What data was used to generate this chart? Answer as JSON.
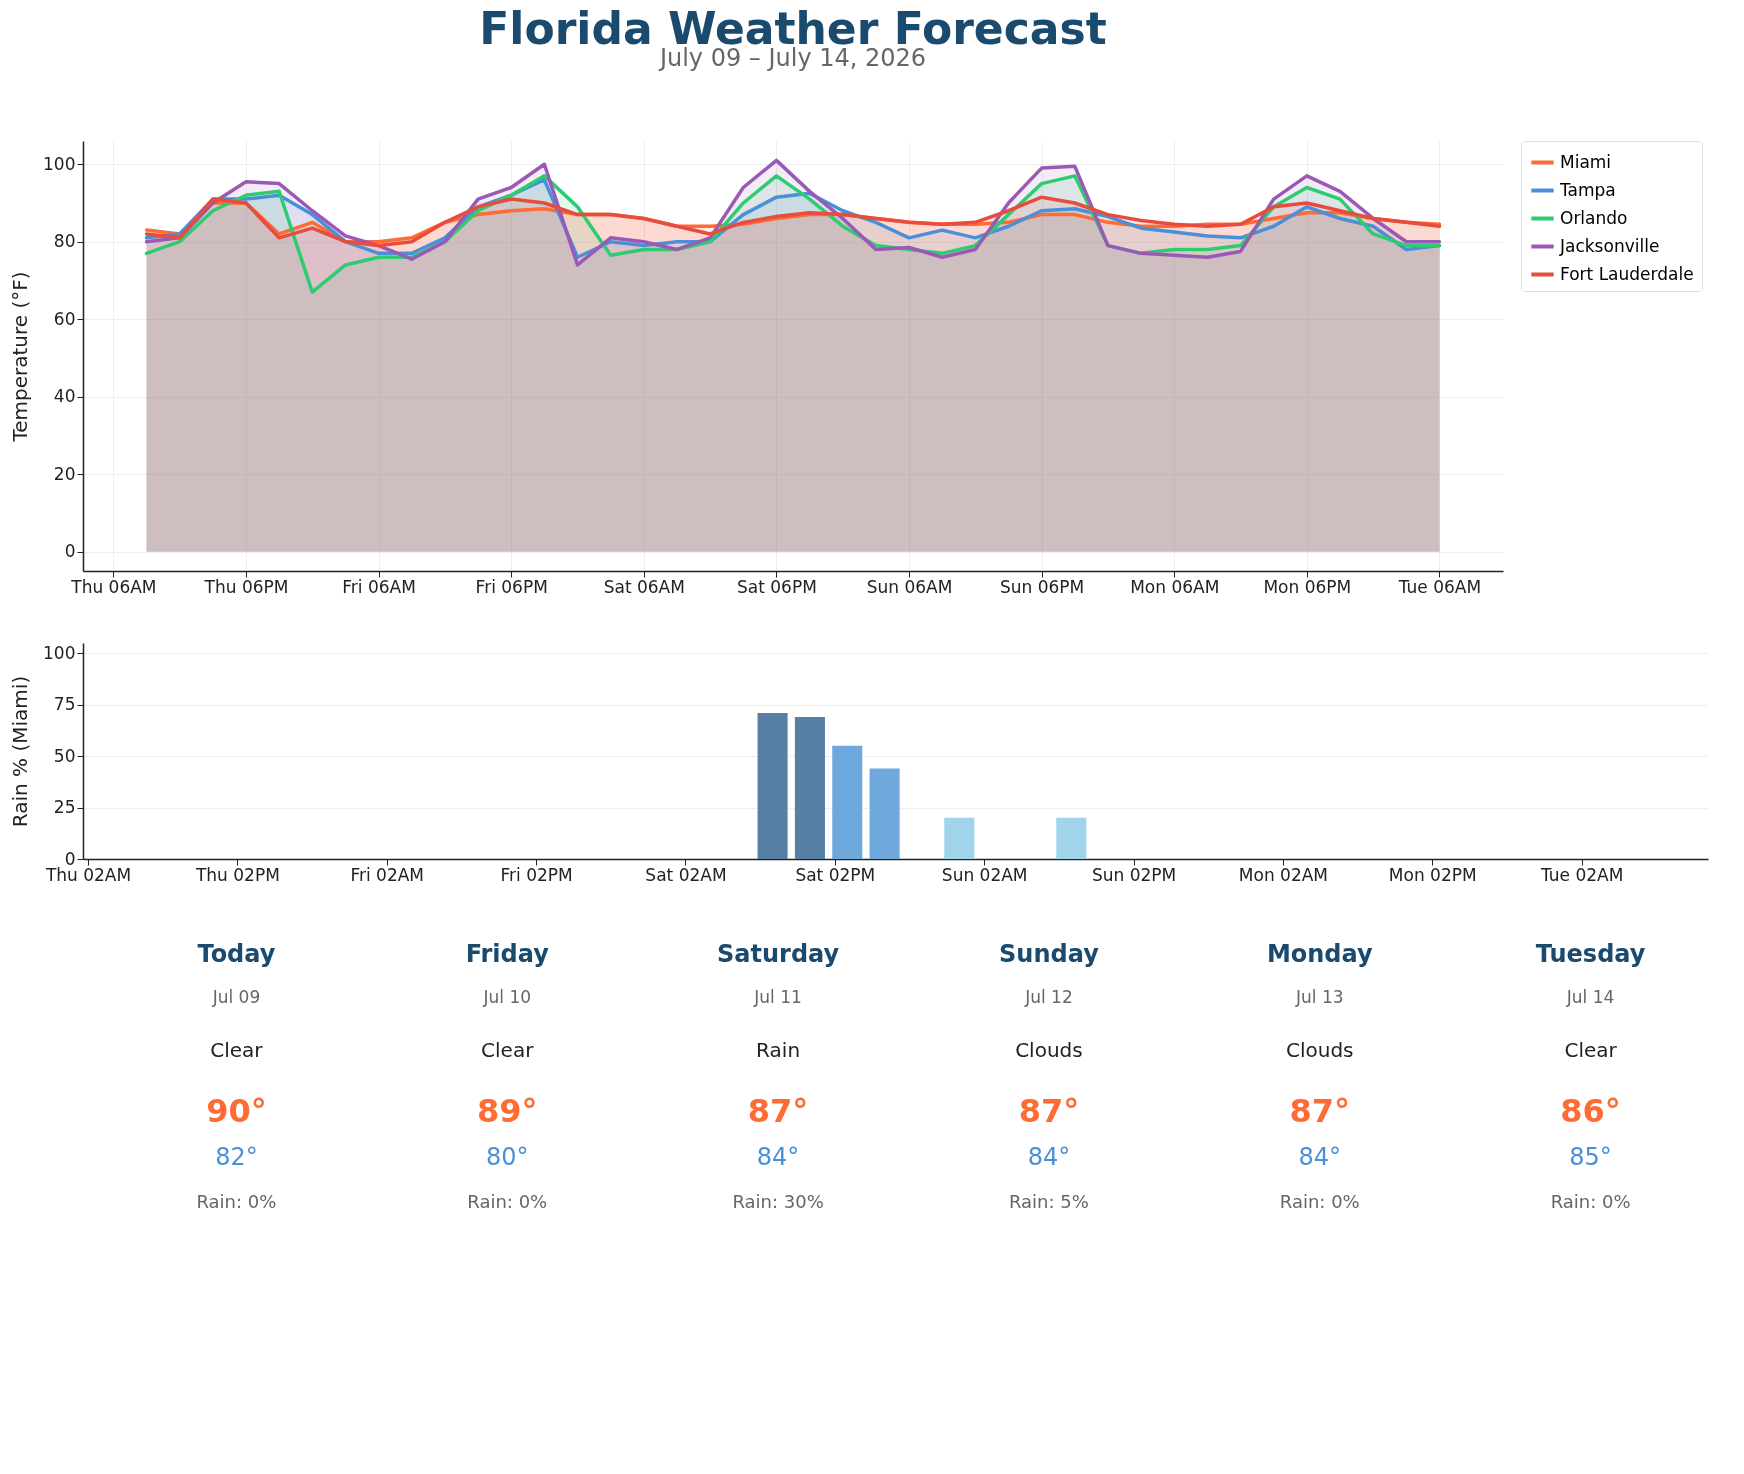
{
  "chart_data": [
    {
      "type": "area",
      "title": "Florida Weather Forecast",
      "subtitle": "July 09 – July 14, 2026",
      "ylabel": "Temperature (°F)",
      "x": [
        "2026-07-09T09:00",
        "2026-07-09T12:00",
        "2026-07-09T15:00",
        "2026-07-09T18:00",
        "2026-07-09T21:00",
        "2026-07-10T00:00",
        "2026-07-10T03:00",
        "2026-07-10T06:00",
        "2026-07-10T09:00",
        "2026-07-10T12:00",
        "2026-07-10T15:00",
        "2026-07-10T18:00",
        "2026-07-10T21:00",
        "2026-07-11T00:00",
        "2026-07-11T03:00",
        "2026-07-11T06:00",
        "2026-07-11T09:00",
        "2026-07-11T12:00",
        "2026-07-11T15:00",
        "2026-07-11T18:00",
        "2026-07-11T21:00",
        "2026-07-12T00:00",
        "2026-07-12T03:00",
        "2026-07-12T06:00",
        "2026-07-12T09:00",
        "2026-07-12T12:00",
        "2026-07-12T15:00",
        "2026-07-12T18:00",
        "2026-07-12T21:00",
        "2026-07-13T00:00",
        "2026-07-13T03:00",
        "2026-07-13T06:00",
        "2026-07-13T09:00",
        "2026-07-13T12:00",
        "2026-07-13T15:00",
        "2026-07-13T18:00",
        "2026-07-13T21:00",
        "2026-07-14T00:00",
        "2026-07-14T03:00",
        "2026-07-14T06:00"
      ],
      "series": [
        {
          "name": "Miami",
          "color": "#ff6b35",
          "values": [
            83,
            82,
            90,
            90,
            82,
            85,
            80,
            80,
            81,
            85,
            87,
            88,
            88.5,
            87,
            87,
            86,
            84,
            84,
            84.5,
            86,
            87,
            87,
            86,
            85,
            84.5,
            84.5,
            85,
            87,
            87,
            85,
            84,
            84,
            84.5,
            84.5,
            86,
            87.5,
            87.5,
            86,
            85,
            84.5
          ]
        },
        {
          "name": "Tampa",
          "color": "#4a90d9",
          "values": [
            81,
            82,
            91,
            91,
            92,
            87,
            80,
            77,
            77,
            81,
            89,
            92,
            96,
            76,
            80,
            79,
            80,
            80,
            87,
            91.5,
            92.5,
            88,
            85,
            81,
            83,
            81,
            84,
            88,
            88.5,
            86.5,
            83.5,
            82.5,
            81.5,
            81,
            84,
            89,
            86,
            84,
            78,
            79
          ]
        },
        {
          "name": "Orlando",
          "color": "#2ecc71",
          "values": [
            77,
            80,
            88,
            92,
            93,
            67,
            74,
            76,
            76,
            80,
            88,
            92,
            97,
            89,
            76.5,
            78,
            78,
            80,
            90,
            97,
            91,
            84,
            79,
            78,
            77,
            79,
            87,
            95,
            97,
            79,
            77,
            78,
            78,
            79,
            89,
            94,
            91,
            82,
            79,
            79
          ]
        },
        {
          "name": "Jacksonville",
          "color": "#9b59b6",
          "values": [
            80,
            81,
            90,
            95.5,
            95,
            88,
            81.5,
            79,
            75.5,
            80,
            91,
            94,
            100,
            74,
            81,
            80,
            78,
            81,
            94,
            101,
            93,
            86,
            78,
            78.5,
            76,
            78,
            90,
            99,
            99.5,
            79,
            77,
            76.5,
            76,
            77.5,
            91,
            97,
            93,
            86,
            80,
            80
          ]
        },
        {
          "name": "Fort Lauderdale",
          "color": "#e74c3c",
          "values": [
            82,
            81,
            91,
            90,
            81,
            83.5,
            80,
            79,
            80,
            85,
            89,
            91,
            90,
            87,
            87,
            86,
            84,
            82,
            85,
            86.5,
            87.5,
            87,
            86,
            85,
            84.5,
            85,
            88,
            91.5,
            90,
            87,
            85.5,
            84.5,
            84,
            84.5,
            89,
            90,
            88,
            86,
            85,
            84
          ]
        }
      ],
      "xlim": [
        "2026-07-09T03:15",
        "2026-07-14T11:45"
      ],
      "xticks": [
        {
          "value": "2026-07-09T06:00",
          "label": "Thu 06AM"
        },
        {
          "value": "2026-07-09T18:00",
          "label": "Thu 06PM"
        },
        {
          "value": "2026-07-10T06:00",
          "label": "Fri 06AM"
        },
        {
          "value": "2026-07-10T18:00",
          "label": "Fri 06PM"
        },
        {
          "value": "2026-07-11T06:00",
          "label": "Sat 06AM"
        },
        {
          "value": "2026-07-11T18:00",
          "label": "Sat 06PM"
        },
        {
          "value": "2026-07-12T06:00",
          "label": "Sun 06AM"
        },
        {
          "value": "2026-07-12T18:00",
          "label": "Sun 06PM"
        },
        {
          "value": "2026-07-13T06:00",
          "label": "Mon 06AM"
        },
        {
          "value": "2026-07-13T18:00",
          "label": "Mon 06PM"
        },
        {
          "value": "2026-07-14T06:00",
          "label": "Tue 06AM"
        }
      ],
      "ylim": [
        -5,
        106
      ],
      "yticks": [
        0,
        20,
        40,
        60,
        80,
        100
      ],
      "grid": true,
      "legend": "top right"
    },
    {
      "type": "bar",
      "ylabel": "Rain % (Miami)",
      "x": [
        "2026-07-11T09:00",
        "2026-07-11T12:00",
        "2026-07-11T15:00",
        "2026-07-11T18:00",
        "2026-07-12T00:00",
        "2026-07-12T09:00"
      ],
      "values": [
        71,
        69,
        55,
        44,
        20,
        20
      ],
      "colors": [
        "#567fa3",
        "#567fa3",
        "#6fa8dc",
        "#6fa8dc",
        "#a0d4ea",
        "#a0d4ea"
      ],
      "xlim": [
        "2026-07-09T02:00",
        "2026-07-14T11:45"
      ],
      "xticks": [
        {
          "value": "2026-07-09T02:00",
          "label": "Thu 02AM"
        },
        {
          "value": "2026-07-09T14:00",
          "label": "Thu 02PM"
        },
        {
          "value": "2026-07-10T02:00",
          "label": "Fri 02AM"
        },
        {
          "value": "2026-07-10T14:00",
          "label": "Fri 02PM"
        },
        {
          "value": "2026-07-11T02:00",
          "label": "Sat 02AM"
        },
        {
          "value": "2026-07-11T14:00",
          "label": "Sat 02PM"
        },
        {
          "value": "2026-07-12T02:00",
          "label": "Sun 02AM"
        },
        {
          "value": "2026-07-12T14:00",
          "label": "Sun 02PM"
        },
        {
          "value": "2026-07-13T02:00",
          "label": "Mon 02AM"
        },
        {
          "value": "2026-07-13T14:00",
          "label": "Mon 02PM"
        },
        {
          "value": "2026-07-14T02:00",
          "label": "Tue 02AM"
        }
      ],
      "ylim": [
        0,
        105
      ],
      "yticks": [
        0,
        25,
        50,
        75,
        100
      ],
      "grid": "y"
    },
    {
      "type": "other",
      "categories": [
        "Today",
        "Friday",
        "Saturday",
        "Sunday",
        "Monday",
        "Tuesday"
      ],
      "annotations": [
        "Jul 09",
        "Jul 10",
        "Jul 11",
        "Jul 12",
        "Jul 13",
        "Jul 14",
        "Clear",
        "Clear",
        "Rain",
        "Clouds",
        "Clouds",
        "Clear",
        "90°",
        "89°",
        "87°",
        "87°",
        "87°",
        "86°",
        "82°",
        "80°",
        "84°",
        "84°",
        "84°",
        "85°",
        "Rain: 0%",
        "Rain: 0%",
        "Rain: 30%",
        "Rain: 5%",
        "Rain: 0%",
        "Rain: 0%"
      ]
    }
  ]
}
